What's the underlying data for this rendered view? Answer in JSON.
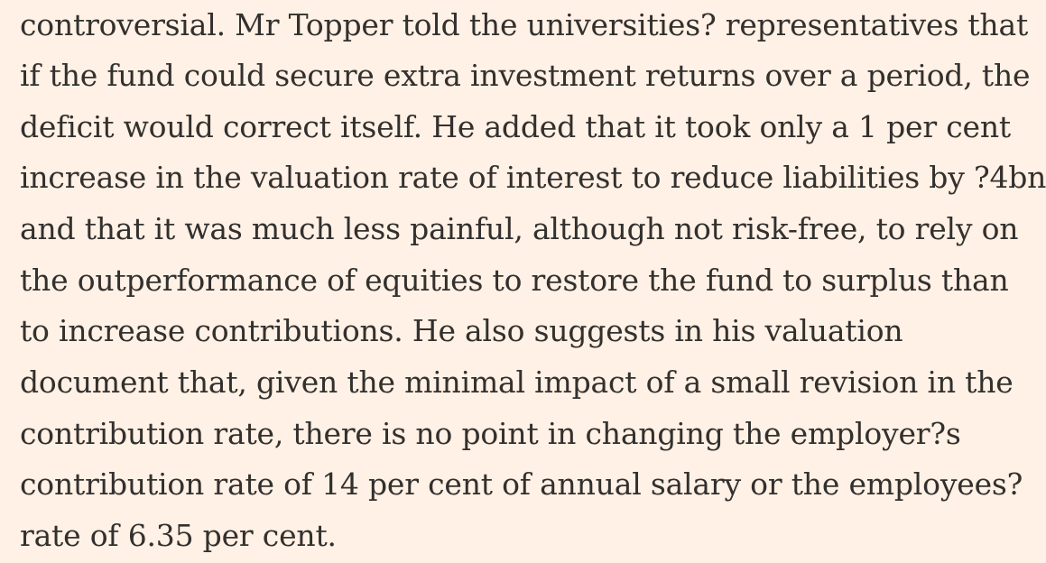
{
  "article": {
    "lines": [
      "controversial. Mr Topper told the universities? representatives that",
      "if the fund could secure extra investment returns over a period, the",
      "deficit would correct itself. He added that it took only a 1 per cent",
      "increase in the valuation rate of interest to reduce liabilities by ?4bn",
      "and that it was much less painful, although not risk-free, to rely on",
      "the outperformance of equities to restore the fund to surplus than",
      "to increase contributions. He also suggests in his valuation",
      "document that, given the minimal impact of a small revision in the",
      "contribution rate, there is no point in changing the employer?s",
      "contribution rate of 14 per cent of annual salary or the employees?",
      "rate of 6.35 per cent."
    ]
  },
  "colors": {
    "background": "#fff1e5",
    "text": "#33302e"
  }
}
